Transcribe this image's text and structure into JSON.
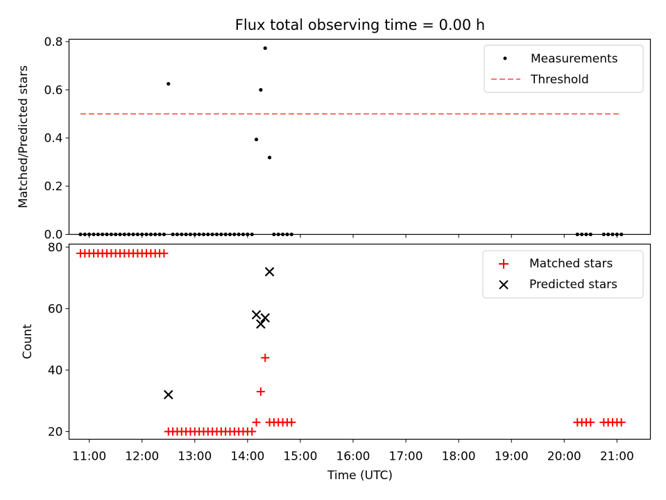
{
  "chart_data": [
    {
      "type": "scatter",
      "title": "Flux total observing time = 0.00 h",
      "xlabel": "",
      "ylabel": "Matched/Predicted stars",
      "ylim": [
        0,
        0.81
      ],
      "xlim": [
        "10:37",
        "21:38"
      ],
      "yticks": [
        "0.0",
        "0.2",
        "0.4",
        "0.6",
        "0.8"
      ],
      "legend_placement": "top-right",
      "series": [
        {
          "name": "Measurements",
          "style": "dot",
          "color": "#000000",
          "points": [
            {
              "x": "10:50",
              "y": 0
            },
            {
              "x": "10:55",
              "y": 0
            },
            {
              "x": "11:00",
              "y": 0
            },
            {
              "x": "11:05",
              "y": 0
            },
            {
              "x": "11:10",
              "y": 0
            },
            {
              "x": "11:15",
              "y": 0
            },
            {
              "x": "11:20",
              "y": 0
            },
            {
              "x": "11:25",
              "y": 0
            },
            {
              "x": "11:30",
              "y": 0
            },
            {
              "x": "11:35",
              "y": 0
            },
            {
              "x": "11:40",
              "y": 0
            },
            {
              "x": "11:45",
              "y": 0
            },
            {
              "x": "11:50",
              "y": 0
            },
            {
              "x": "11:55",
              "y": 0
            },
            {
              "x": "12:00",
              "y": 0
            },
            {
              "x": "12:05",
              "y": 0
            },
            {
              "x": "12:10",
              "y": 0
            },
            {
              "x": "12:15",
              "y": 0
            },
            {
              "x": "12:20",
              "y": 0
            },
            {
              "x": "12:25",
              "y": 0
            },
            {
              "x": "12:30",
              "y": 0.625
            },
            {
              "x": "12:35",
              "y": 0
            },
            {
              "x": "12:40",
              "y": 0
            },
            {
              "x": "12:45",
              "y": 0
            },
            {
              "x": "12:50",
              "y": 0
            },
            {
              "x": "12:55",
              "y": 0
            },
            {
              "x": "13:00",
              "y": 0
            },
            {
              "x": "13:05",
              "y": 0
            },
            {
              "x": "13:10",
              "y": 0
            },
            {
              "x": "13:15",
              "y": 0
            },
            {
              "x": "13:20",
              "y": 0
            },
            {
              "x": "13:25",
              "y": 0
            },
            {
              "x": "13:30",
              "y": 0
            },
            {
              "x": "13:35",
              "y": 0
            },
            {
              "x": "13:40",
              "y": 0
            },
            {
              "x": "13:45",
              "y": 0
            },
            {
              "x": "13:50",
              "y": 0
            },
            {
              "x": "13:55",
              "y": 0
            },
            {
              "x": "14:00",
              "y": 0
            },
            {
              "x": "14:05",
              "y": 0
            },
            {
              "x": "14:10",
              "y": 0.394
            },
            {
              "x": "14:15",
              "y": 0.6
            },
            {
              "x": "14:20",
              "y": 0.773
            },
            {
              "x": "14:25",
              "y": 0.319
            },
            {
              "x": "14:30",
              "y": 0
            },
            {
              "x": "14:35",
              "y": 0
            },
            {
              "x": "14:40",
              "y": 0
            },
            {
              "x": "14:45",
              "y": 0
            },
            {
              "x": "14:50",
              "y": 0
            },
            {
              "x": "20:15",
              "y": 0
            },
            {
              "x": "20:20",
              "y": 0
            },
            {
              "x": "20:25",
              "y": 0
            },
            {
              "x": "20:30",
              "y": 0
            },
            {
              "x": "20:45",
              "y": 0
            },
            {
              "x": "20:50",
              "y": 0
            },
            {
              "x": "20:55",
              "y": 0
            },
            {
              "x": "21:00",
              "y": 0
            },
            {
              "x": "21:05",
              "y": 0
            }
          ]
        },
        {
          "name": "Threshold",
          "style": "dashed-line",
          "color": "#ff7070",
          "points": [
            {
              "x": "10:50",
              "y": 0.5
            },
            {
              "x": "21:05",
              "y": 0.5
            }
          ]
        }
      ]
    },
    {
      "type": "scatter",
      "title": "",
      "xlabel": "Time (UTC)",
      "ylabel": "Count",
      "ylim": [
        17.5,
        81
      ],
      "xlim": [
        "10:37",
        "21:38"
      ],
      "yticks": [
        "20",
        "40",
        "60",
        "80"
      ],
      "xticks": [
        "11:00",
        "12:00",
        "13:00",
        "14:00",
        "15:00",
        "16:00",
        "17:00",
        "18:00",
        "19:00",
        "20:00",
        "21:00"
      ],
      "legend_placement": "top-right",
      "series": [
        {
          "name": "Matched stars",
          "style": "plus",
          "color": "#ff0000",
          "points": [
            {
              "x": "10:50",
              "y": 78
            },
            {
              "x": "10:55",
              "y": 78
            },
            {
              "x": "11:00",
              "y": 78
            },
            {
              "x": "11:05",
              "y": 78
            },
            {
              "x": "11:10",
              "y": 78
            },
            {
              "x": "11:15",
              "y": 78
            },
            {
              "x": "11:20",
              "y": 78
            },
            {
              "x": "11:25",
              "y": 78
            },
            {
              "x": "11:30",
              "y": 78
            },
            {
              "x": "11:35",
              "y": 78
            },
            {
              "x": "11:40",
              "y": 78
            },
            {
              "x": "11:45",
              "y": 78
            },
            {
              "x": "11:50",
              "y": 78
            },
            {
              "x": "11:55",
              "y": 78
            },
            {
              "x": "12:00",
              "y": 78
            },
            {
              "x": "12:05",
              "y": 78
            },
            {
              "x": "12:10",
              "y": 78
            },
            {
              "x": "12:15",
              "y": 78
            },
            {
              "x": "12:20",
              "y": 78
            },
            {
              "x": "12:25",
              "y": 78
            },
            {
              "x": "12:30",
              "y": 20
            },
            {
              "x": "12:35",
              "y": 20
            },
            {
              "x": "12:40",
              "y": 20
            },
            {
              "x": "12:45",
              "y": 20
            },
            {
              "x": "12:50",
              "y": 20
            },
            {
              "x": "12:55",
              "y": 20
            },
            {
              "x": "13:00",
              "y": 20
            },
            {
              "x": "13:05",
              "y": 20
            },
            {
              "x": "13:10",
              "y": 20
            },
            {
              "x": "13:15",
              "y": 20
            },
            {
              "x": "13:20",
              "y": 20
            },
            {
              "x": "13:25",
              "y": 20
            },
            {
              "x": "13:30",
              "y": 20
            },
            {
              "x": "13:35",
              "y": 20
            },
            {
              "x": "13:40",
              "y": 20
            },
            {
              "x": "13:45",
              "y": 20
            },
            {
              "x": "13:50",
              "y": 20
            },
            {
              "x": "13:55",
              "y": 20
            },
            {
              "x": "14:00",
              "y": 20
            },
            {
              "x": "14:05",
              "y": 20
            },
            {
              "x": "14:10",
              "y": 23
            },
            {
              "x": "14:15",
              "y": 33
            },
            {
              "x": "14:20",
              "y": 44
            },
            {
              "x": "14:25",
              "y": 23
            },
            {
              "x": "14:30",
              "y": 23
            },
            {
              "x": "14:35",
              "y": 23
            },
            {
              "x": "14:40",
              "y": 23
            },
            {
              "x": "14:45",
              "y": 23
            },
            {
              "x": "14:50",
              "y": 23
            },
            {
              "x": "20:15",
              "y": 23
            },
            {
              "x": "20:20",
              "y": 23
            },
            {
              "x": "20:25",
              "y": 23
            },
            {
              "x": "20:30",
              "y": 23
            },
            {
              "x": "20:45",
              "y": 23
            },
            {
              "x": "20:50",
              "y": 23
            },
            {
              "x": "20:55",
              "y": 23
            },
            {
              "x": "21:00",
              "y": 23
            },
            {
              "x": "21:05",
              "y": 23
            }
          ]
        },
        {
          "name": "Predicted stars",
          "style": "x",
          "color": "#000000",
          "points": [
            {
              "x": "12:30",
              "y": 32
            },
            {
              "x": "14:10",
              "y": 58
            },
            {
              "x": "14:15",
              "y": 55
            },
            {
              "x": "14:20",
              "y": 57
            },
            {
              "x": "14:25",
              "y": 72
            }
          ]
        }
      ]
    }
  ]
}
